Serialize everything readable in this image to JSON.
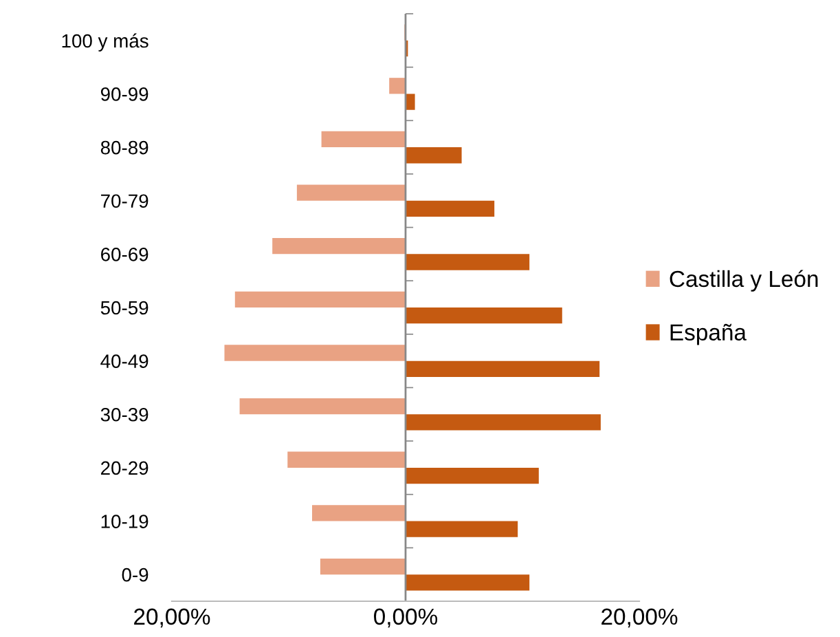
{
  "chart_data": {
    "type": "bar",
    "orientation": "horizontal",
    "categories": [
      "100 y más",
      "90-99",
      "80-89",
      "70-79",
      "60-69",
      "50-59",
      "40-49",
      "30-39",
      "20-29",
      "10-19",
      "0-9"
    ],
    "series": [
      {
        "name": "Castilla y León",
        "color": "#e9a283",
        "values": [
          -0.1,
          -1.4,
          -7.2,
          -9.3,
          -11.4,
          -14.6,
          -15.5,
          -14.2,
          -10.1,
          -8.0,
          -7.3
        ]
      },
      {
        "name": "España",
        "color": "#c55a11",
        "values": [
          0.2,
          0.8,
          4.8,
          7.6,
          10.6,
          13.4,
          16.6,
          16.7,
          11.4,
          9.6,
          10.6
        ]
      }
    ],
    "xlim": [
      -20,
      20
    ],
    "xticks": [
      {
        "value": -20,
        "label": "20,00%"
      },
      {
        "value": 0,
        "label": "0,00%"
      },
      {
        "value": 20,
        "label": "20,00%"
      }
    ],
    "ref_lines": [
      {
        "axis": "x",
        "value": 0,
        "color": "#888888"
      }
    ],
    "grid": false,
    "legend": "right"
  }
}
